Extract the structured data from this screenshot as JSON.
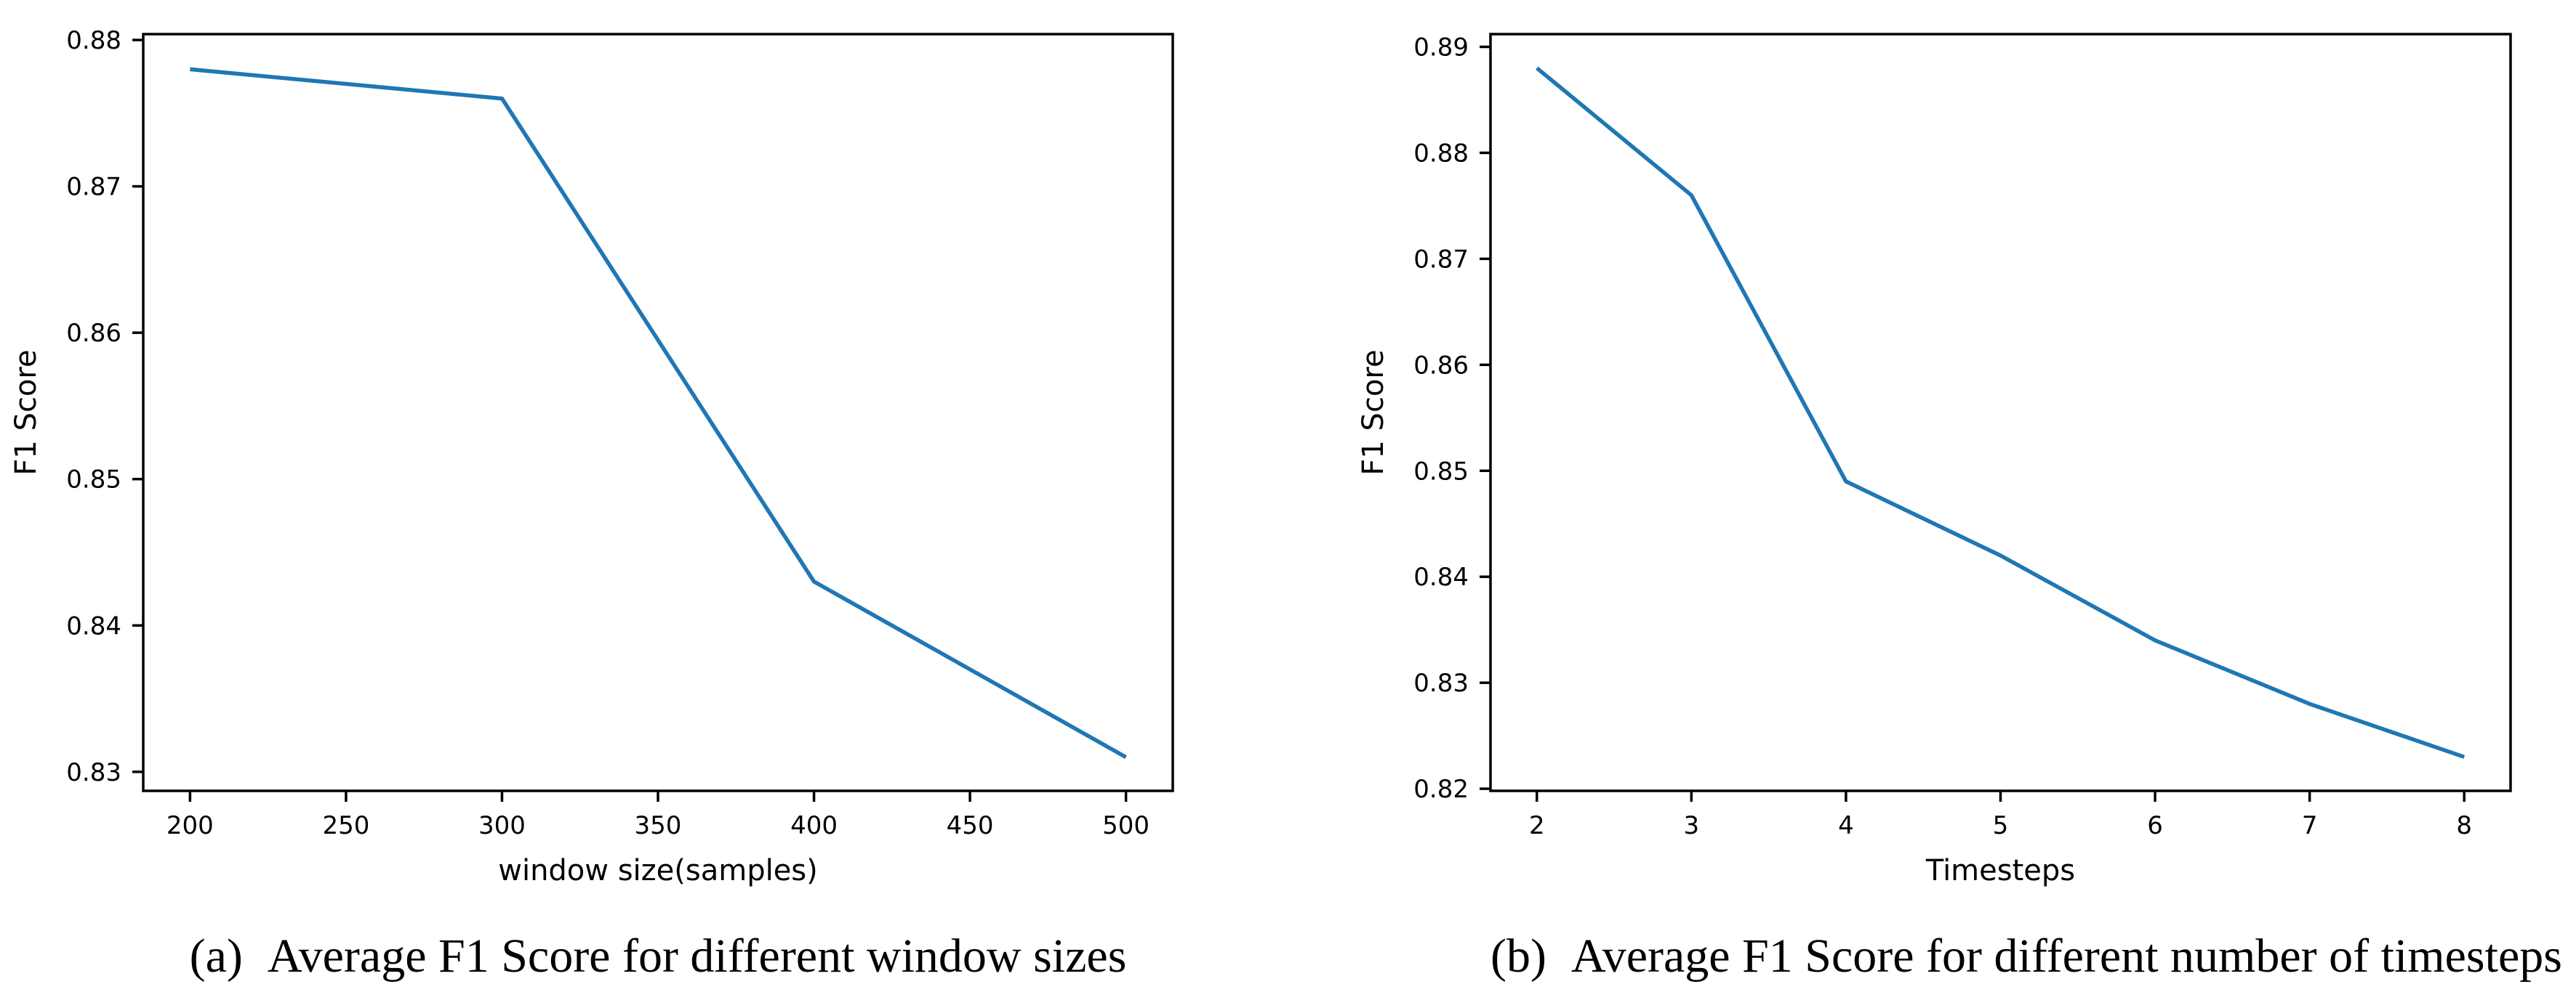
{
  "figure": {
    "panels": [
      {
        "caption_label": "(a)",
        "caption_text": "Average F1 Score for different window sizes"
      },
      {
        "caption_label": "(b)",
        "caption_text": "Average F1 Score for different number of timesteps"
      }
    ]
  },
  "chart_data": [
    {
      "type": "line",
      "title": "",
      "xlabel": "window size(samples)",
      "ylabel": "F1 Score",
      "x": [
        200,
        300,
        400,
        500
      ],
      "y": [
        0.878,
        0.876,
        0.843,
        0.831
      ],
      "series": [
        {
          "name": "Average F1 Score",
          "x": [
            200,
            300,
            400,
            500
          ],
          "y": [
            0.878,
            0.876,
            0.843,
            0.831
          ]
        }
      ],
      "xticks": [
        {
          "v": 200,
          "label": "200"
        },
        {
          "v": 250,
          "label": "250"
        },
        {
          "v": 300,
          "label": "300"
        },
        {
          "v": 350,
          "label": "350"
        },
        {
          "v": 400,
          "label": "400"
        },
        {
          "v": 450,
          "label": "450"
        },
        {
          "v": 500,
          "label": "500"
        }
      ],
      "yticks": [
        {
          "v": 0.83,
          "label": "0.83"
        },
        {
          "v": 0.84,
          "label": "0.84"
        },
        {
          "v": 0.85,
          "label": "0.85"
        },
        {
          "v": 0.86,
          "label": "0.86"
        },
        {
          "v": 0.87,
          "label": "0.87"
        },
        {
          "v": 0.88,
          "label": "0.88"
        }
      ],
      "xlim": [
        185,
        515
      ],
      "ylim": [
        0.8287,
        0.8804
      ],
      "line_color": "#1f77b4",
      "axis_color": "#000000",
      "grid": false,
      "legend": null
    },
    {
      "type": "line",
      "title": "",
      "xlabel": "Timesteps",
      "ylabel": "F1 Score",
      "x": [
        2,
        3,
        4,
        5,
        6,
        7,
        8
      ],
      "y": [
        0.888,
        0.876,
        0.849,
        0.842,
        0.834,
        0.828,
        0.823
      ],
      "series": [
        {
          "name": "Average F1 Score",
          "x": [
            2,
            3,
            4,
            5,
            6,
            7,
            8
          ],
          "y": [
            0.888,
            0.876,
            0.849,
            0.842,
            0.834,
            0.828,
            0.823
          ]
        }
      ],
      "xticks": [
        {
          "v": 2,
          "label": "2"
        },
        {
          "v": 3,
          "label": "3"
        },
        {
          "v": 4,
          "label": "4"
        },
        {
          "v": 5,
          "label": "5"
        },
        {
          "v": 6,
          "label": "6"
        },
        {
          "v": 7,
          "label": "7"
        },
        {
          "v": 8,
          "label": "8"
        }
      ],
      "yticks": [
        {
          "v": 0.82,
          "label": "0.82"
        },
        {
          "v": 0.83,
          "label": "0.83"
        },
        {
          "v": 0.84,
          "label": "0.84"
        },
        {
          "v": 0.85,
          "label": "0.85"
        },
        {
          "v": 0.86,
          "label": "0.86"
        },
        {
          "v": 0.87,
          "label": "0.87"
        },
        {
          "v": 0.88,
          "label": "0.88"
        },
        {
          "v": 0.89,
          "label": "0.89"
        }
      ],
      "xlim": [
        1.7,
        8.3
      ],
      "ylim": [
        0.8198,
        0.8912
      ],
      "line_color": "#1f77b4",
      "axis_color": "#000000",
      "grid": false,
      "legend": null
    }
  ]
}
